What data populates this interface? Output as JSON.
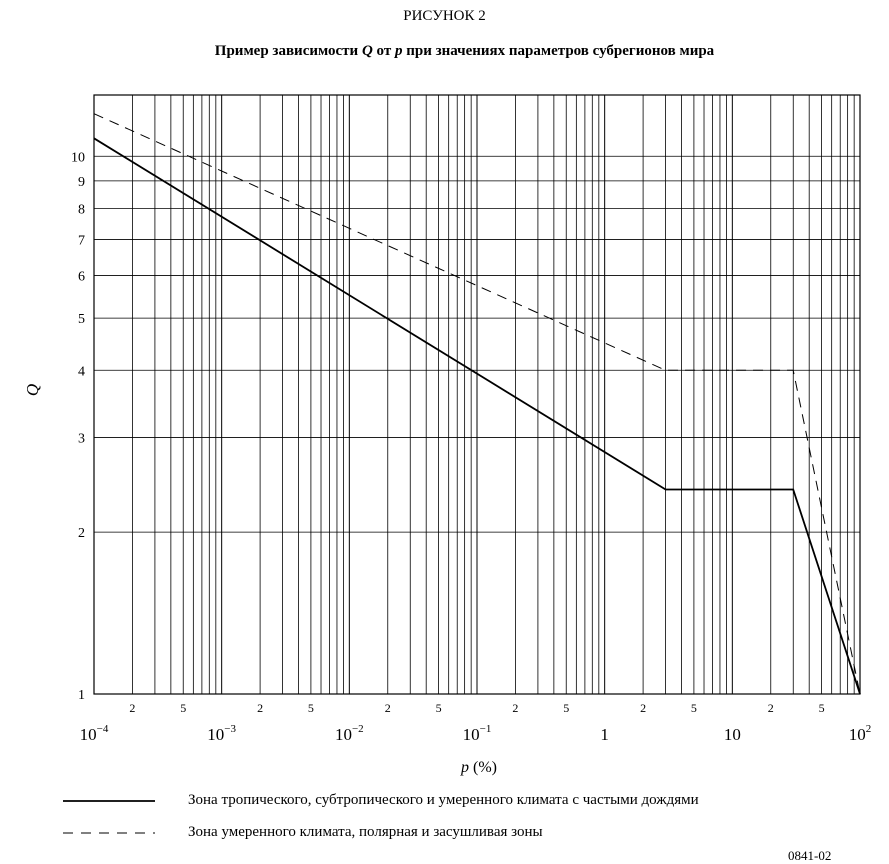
{
  "figure_label": "РИСУНОК 2",
  "chart_data": {
    "type": "line",
    "title": {
      "parts": [
        {
          "text": "Пример зависимости ",
          "italic": false
        },
        {
          "text": "Q",
          "italic": true
        },
        {
          "text": " от ",
          "italic": false
        },
        {
          "text": "p",
          "italic": true
        },
        {
          "text": " при значениях параметров субрегионов мира",
          "italic": false
        }
      ]
    },
    "xlabel": {
      "var": "p",
      "unit": " (%)"
    },
    "ylabel": "Q",
    "x_scale": "log",
    "y_scale": "log",
    "xlim": [
      0.0001,
      100
    ],
    "ylim": [
      1,
      13
    ],
    "grid": true,
    "x_major_ticks": [
      {
        "value": 0.0001,
        "base": "10",
        "exp": "−4"
      },
      {
        "value": 0.001,
        "base": "10",
        "exp": "−3"
      },
      {
        "value": 0.01,
        "base": "10",
        "exp": "−2"
      },
      {
        "value": 0.1,
        "base": "10",
        "exp": "−1"
      },
      {
        "value": 1,
        "base": "1",
        "exp": ""
      },
      {
        "value": 10,
        "base": "10",
        "exp": ""
      },
      {
        "value": 100,
        "base": "10",
        "exp": "2"
      }
    ],
    "x_minor_labels": [
      "2",
      "5"
    ],
    "y_ticks": [
      {
        "value": 1,
        "label": "1"
      },
      {
        "value": 2,
        "label": "2"
      },
      {
        "value": 3,
        "label": "3"
      },
      {
        "value": 4,
        "label": "4"
      },
      {
        "value": 5,
        "label": "5"
      },
      {
        "value": 6,
        "label": "6"
      },
      {
        "value": 7,
        "label": "7"
      },
      {
        "value": 8,
        "label": "8"
      },
      {
        "value": 9,
        "label": "9"
      },
      {
        "value": 10,
        "label": "10"
      }
    ],
    "series": [
      {
        "name": "Зона тропического, субтропического и умеренного климата с частыми дождями",
        "style": "solid",
        "x": [
          0.0001,
          3,
          30,
          100
        ],
        "y": [
          10.8,
          2.4,
          2.4,
          1.0
        ]
      },
      {
        "name": "Зона умеренного климата, полярная и засушливая зоны",
        "style": "dashed",
        "x": [
          0.0001,
          3,
          30,
          100
        ],
        "y": [
          12.0,
          4.0,
          4.0,
          1.0
        ]
      }
    ],
    "legend_position": "bottom"
  },
  "figure_code": "0841-02"
}
